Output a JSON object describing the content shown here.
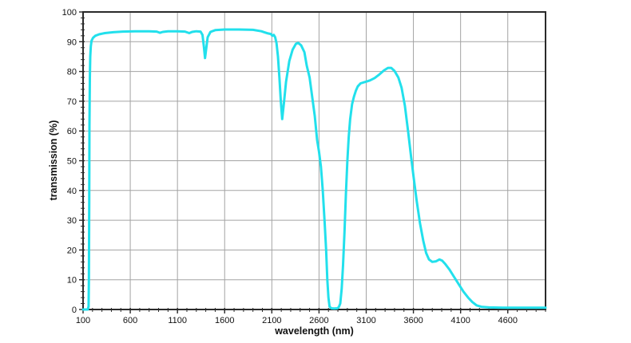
{
  "chart_data": {
    "type": "line",
    "title": "",
    "xlabel": "wavelength (nm)",
    "ylabel": "transmission (%)",
    "xlim": [
      100,
      5000
    ],
    "ylim": [
      0,
      100
    ],
    "x_ticks": [
      100,
      600,
      1100,
      1600,
      2100,
      2600,
      3100,
      3600,
      4100,
      4600
    ],
    "y_ticks": [
      0,
      10,
      20,
      30,
      40,
      50,
      60,
      70,
      80,
      90,
      100
    ],
    "x_minor_step": 100,
    "y_minor_step": 2,
    "grid": true,
    "legend": "none",
    "line_color": "#22e0ec",
    "grid_color": "#a3a3a3",
    "axis_color": "#2a2a2a",
    "background": "#ffffff",
    "series": [
      {
        "name": "transmission",
        "points": [
          [
            100,
            0
          ],
          [
            150,
            0
          ],
          [
            158,
            1
          ],
          [
            162,
            10
          ],
          [
            165,
            35
          ],
          [
            168,
            62
          ],
          [
            172,
            78
          ],
          [
            176,
            85
          ],
          [
            182,
            88.5
          ],
          [
            190,
            90.3
          ],
          [
            205,
            91.3
          ],
          [
            230,
            92.0
          ],
          [
            270,
            92.5
          ],
          [
            330,
            92.9
          ],
          [
            420,
            93.2
          ],
          [
            520,
            93.4
          ],
          [
            650,
            93.5
          ],
          [
            800,
            93.5
          ],
          [
            880,
            93.4
          ],
          [
            915,
            93.0
          ],
          [
            945,
            93.3
          ],
          [
            1000,
            93.5
          ],
          [
            1100,
            93.5
          ],
          [
            1180,
            93.4
          ],
          [
            1225,
            92.9
          ],
          [
            1255,
            93.3
          ],
          [
            1300,
            93.5
          ],
          [
            1345,
            93.4
          ],
          [
            1365,
            92.3
          ],
          [
            1380,
            88.5
          ],
          [
            1392,
            84.5
          ],
          [
            1404,
            87.5
          ],
          [
            1420,
            91.5
          ],
          [
            1450,
            93.3
          ],
          [
            1500,
            93.9
          ],
          [
            1600,
            94.1
          ],
          [
            1750,
            94.1
          ],
          [
            1900,
            94.0
          ],
          [
            1990,
            93.5
          ],
          [
            2020,
            93.2
          ],
          [
            2060,
            92.8
          ],
          [
            2090,
            92.6
          ],
          [
            2105,
            92.0
          ],
          [
            2120,
            92.3
          ],
          [
            2135,
            91.5
          ],
          [
            2150,
            89.5
          ],
          [
            2165,
            85.0
          ],
          [
            2180,
            78.0
          ],
          [
            2195,
            70.0
          ],
          [
            2210,
            64.0
          ],
          [
            2228,
            69.5
          ],
          [
            2250,
            76.5
          ],
          [
            2285,
            83.5
          ],
          [
            2320,
            87.3
          ],
          [
            2355,
            89.3
          ],
          [
            2380,
            89.6
          ],
          [
            2410,
            88.8
          ],
          [
            2445,
            86.5
          ],
          [
            2470,
            82.0
          ],
          [
            2500,
            78.0
          ],
          [
            2530,
            71.0
          ],
          [
            2555,
            65.0
          ],
          [
            2580,
            57.0
          ],
          [
            2600,
            53.0
          ],
          [
            2620,
            48.0
          ],
          [
            2640,
            40.0
          ],
          [
            2660,
            29.0
          ],
          [
            2675,
            20.0
          ],
          [
            2688,
            10.0
          ],
          [
            2700,
            4.0
          ],
          [
            2712,
            1.0
          ],
          [
            2730,
            0.4
          ],
          [
            2760,
            0.35
          ],
          [
            2795,
            0.4
          ],
          [
            2810,
            0.8
          ],
          [
            2825,
            2.0
          ],
          [
            2840,
            7.0
          ],
          [
            2855,
            15.0
          ],
          [
            2870,
            26.0
          ],
          [
            2885,
            39.0
          ],
          [
            2900,
            50.0
          ],
          [
            2915,
            58.0
          ],
          [
            2930,
            64.0
          ],
          [
            2950,
            69.0
          ],
          [
            2970,
            71.5
          ],
          [
            2990,
            73.5
          ],
          [
            3010,
            75.0
          ],
          [
            3040,
            76.0
          ],
          [
            3100,
            76.6
          ],
          [
            3140,
            77.0
          ],
          [
            3190,
            77.8
          ],
          [
            3240,
            79.0
          ],
          [
            3290,
            80.4
          ],
          [
            3330,
            81.2
          ],
          [
            3365,
            81.2
          ],
          [
            3400,
            80.2
          ],
          [
            3440,
            78.0
          ],
          [
            3475,
            74.5
          ],
          [
            3510,
            68.5
          ],
          [
            3545,
            59.5
          ],
          [
            3575,
            51.5
          ],
          [
            3600,
            45.0
          ],
          [
            3635,
            36.5
          ],
          [
            3670,
            29.0
          ],
          [
            3705,
            23.0
          ],
          [
            3735,
            19.0
          ],
          [
            3765,
            16.8
          ],
          [
            3800,
            16.0
          ],
          [
            3840,
            16.2
          ],
          [
            3875,
            16.8
          ],
          [
            3905,
            16.4
          ],
          [
            3940,
            15.2
          ],
          [
            3980,
            13.5
          ],
          [
            4030,
            11.0
          ],
          [
            4080,
            8.5
          ],
          [
            4130,
            6.0
          ],
          [
            4180,
            4.0
          ],
          [
            4225,
            2.5
          ],
          [
            4270,
            1.4
          ],
          [
            4320,
            0.9
          ],
          [
            4400,
            0.7
          ],
          [
            4550,
            0.6
          ],
          [
            4750,
            0.6
          ],
          [
            5000,
            0.6
          ]
        ]
      }
    ]
  }
}
